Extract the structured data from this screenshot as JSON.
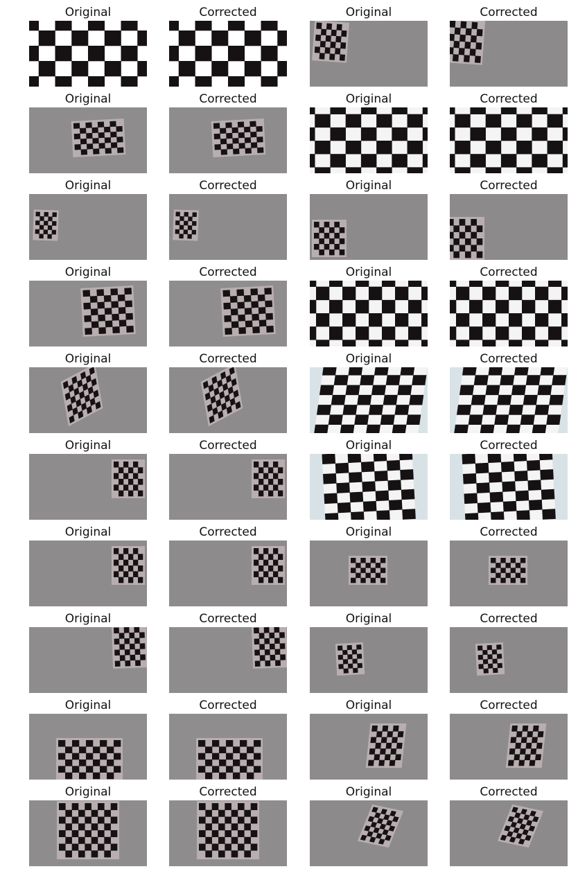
{
  "figure": {
    "label_original": "Original",
    "label_corrected": "Corrected",
    "rows": [
      {
        "pairs": [
          {
            "original": {
              "style": "closeup-flat",
              "bg": "#ffffff"
            },
            "corrected": {
              "style": "closeup-flat",
              "bg": "#ffffff"
            }
          },
          {
            "original": {
              "style": "small-left",
              "bg": "#8c8a8b"
            },
            "corrected": {
              "style": "small-left-edge",
              "bg": "#8c8a8b"
            }
          }
        ]
      },
      {
        "pairs": [
          {
            "original": {
              "style": "center-right",
              "bg": "#8e8c8d"
            },
            "corrected": {
              "style": "center-right",
              "bg": "#8e8c8d"
            }
          },
          {
            "original": {
              "style": "closeup-trapezoid",
              "bg": "#d8e2e6"
            },
            "corrected": {
              "style": "closeup-trapezoid",
              "bg": "#d8e2e6"
            }
          }
        ]
      },
      {
        "pairs": [
          {
            "original": {
              "style": "small-far-left",
              "bg": "#8d8b8c"
            },
            "corrected": {
              "style": "small-far-left",
              "bg": "#8d8b8c"
            }
          },
          {
            "original": {
              "style": "bottom-left",
              "bg": "#8c8a8b"
            },
            "corrected": {
              "style": "bottom-left-edge",
              "bg": "#8c8a8b"
            }
          }
        ]
      },
      {
        "pairs": [
          {
            "original": {
              "style": "right",
              "bg": "#8f8d8e"
            },
            "corrected": {
              "style": "right",
              "bg": "#8f8d8e"
            }
          },
          {
            "original": {
              "style": "closeup-wide",
              "bg": "#d6e0e4"
            },
            "corrected": {
              "style": "closeup-wide",
              "bg": "#d6e0e4"
            }
          }
        ]
      },
      {
        "pairs": [
          {
            "original": {
              "style": "tilted-left",
              "bg": "#8d8b8c"
            },
            "corrected": {
              "style": "tilted-left",
              "bg": "#8d8b8c"
            }
          },
          {
            "original": {
              "style": "closeup-skew",
              "bg": "#d9e3e7"
            },
            "corrected": {
              "style": "closeup-skew",
              "bg": "#d9e3e7"
            }
          }
        ]
      },
      {
        "pairs": [
          {
            "original": {
              "style": "far-right",
              "bg": "#8e8c8d"
            },
            "corrected": {
              "style": "far-right",
              "bg": "#8e8c8d"
            }
          },
          {
            "original": {
              "style": "closeup-mid",
              "bg": "#d8e2e6"
            },
            "corrected": {
              "style": "closeup-mid",
              "bg": "#d8e2e6"
            }
          }
        ]
      },
      {
        "pairs": [
          {
            "original": {
              "style": "far-right",
              "bg": "#8d8b8c"
            },
            "corrected": {
              "style": "far-right",
              "bg": "#8d8b8c"
            }
          },
          {
            "original": {
              "style": "small-center",
              "bg": "#8c8a8b"
            },
            "corrected": {
              "style": "small-center",
              "bg": "#8c8a8b"
            }
          }
        ]
      },
      {
        "pairs": [
          {
            "original": {
              "style": "top-right",
              "bg": "#8e8c8d"
            },
            "corrected": {
              "style": "top-right",
              "bg": "#8e8c8d"
            }
          },
          {
            "original": {
              "style": "small-left-mid",
              "bg": "#8b898a"
            },
            "corrected": {
              "style": "small-left-mid",
              "bg": "#8b898a"
            }
          }
        ]
      },
      {
        "pairs": [
          {
            "original": {
              "style": "bottom-center",
              "bg": "#8f8d8e"
            },
            "corrected": {
              "style": "bottom-center",
              "bg": "#8f8d8e"
            }
          },
          {
            "original": {
              "style": "right-mid",
              "bg": "#8d8b8c"
            },
            "corrected": {
              "style": "right-mid",
              "bg": "#8d8b8c"
            }
          }
        ]
      },
      {
        "pairs": [
          {
            "original": {
              "style": "center-large",
              "bg": "#8e8c8d"
            },
            "corrected": {
              "style": "center-large",
              "bg": "#8e8c8d"
            }
          },
          {
            "original": {
              "style": "right-perspective",
              "bg": "#8c8a8b"
            },
            "corrected": {
              "style": "right-perspective",
              "bg": "#8c8a8b"
            }
          }
        ]
      }
    ]
  }
}
